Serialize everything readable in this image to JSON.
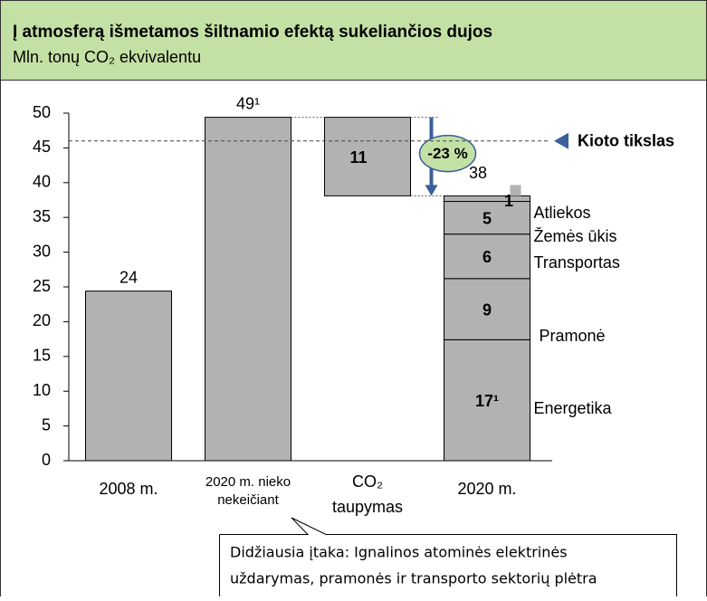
{
  "chart_data": {
    "type": "waterfall",
    "title": "Į atmosferą išmetamos šiltnamio efektą sukeliančios dujos",
    "subtitle": "Mln. tonų CO₂ ekvivalentu",
    "categories": [
      [
        "2008 m."
      ],
      [
        "2020 m. nieko",
        "nekeičiant"
      ],
      [
        "CO₂",
        "taupymas"
      ],
      [
        "2020 m."
      ]
    ],
    "values": [
      24.4,
      49.4,
      11.3,
      38.1
    ],
    "value_labels": [
      "24",
      "49¹",
      "11",
      "38"
    ],
    "color": "#b2b2b2",
    "segments": {
      "names": [
        "Energetika",
        "Pramonė",
        "Transportas",
        "Žemės ūkis",
        "Atliekos"
      ],
      "values": [
        17.4,
        8.8,
        6.4,
        4.7,
        0.8
      ],
      "value_labels": [
        "17¹",
        "9",
        "6",
        "5",
        "1"
      ]
    },
    "target": {
      "label": "Kioto tikslas",
      "value": 46
    },
    "change_label": "-23 %",
    "note": [
      "Didžiausia įtaka: Ignalinos atominės elektrinės",
      "uždarymas, pramonės ir transporto sektorių plėtra"
    ],
    "ylim": [
      0,
      50
    ],
    "yticks": [
      0,
      5,
      10,
      15,
      20,
      25,
      30,
      35,
      40,
      45,
      50
    ]
  }
}
